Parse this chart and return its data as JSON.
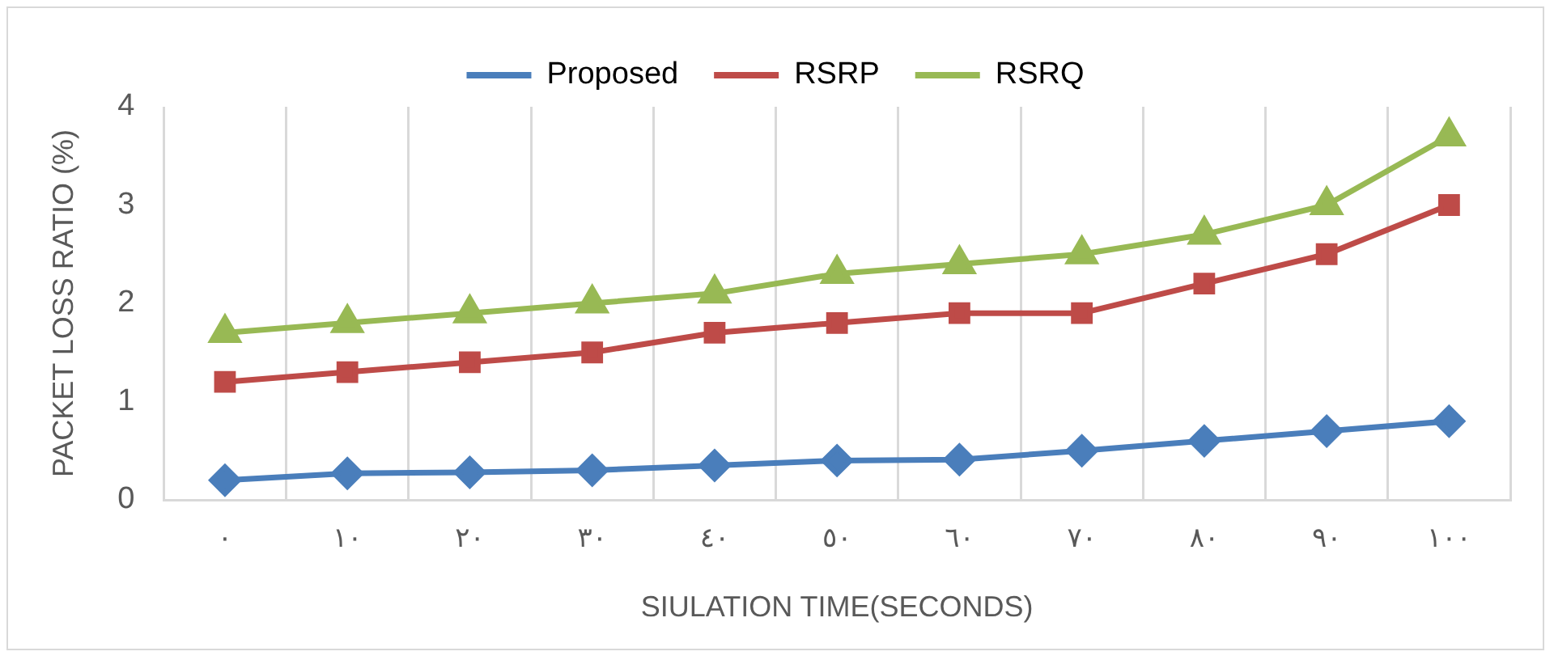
{
  "chart_data": {
    "type": "line",
    "xlabel": "SIULATION TIME(SECONDS)",
    "ylabel": "PACKET LOSS RATIO (%)",
    "categories": [
      "٠",
      "١٠",
      "٢٠",
      "٣٠",
      "٤٠",
      "٥٠",
      "٦٠",
      "٧٠",
      "٨٠",
      "٩٠",
      "١٠٠"
    ],
    "series": [
      {
        "name": "Proposed",
        "color": "#4a7ebb",
        "marker": "diamond",
        "values": [
          0.2,
          0.27,
          0.28,
          0.3,
          0.35,
          0.4,
          0.41,
          0.5,
          0.6,
          0.7,
          0.8
        ]
      },
      {
        "name": "RSRP",
        "color": "#be4b48",
        "marker": "square",
        "values": [
          1.2,
          1.3,
          1.4,
          1.5,
          1.7,
          1.8,
          1.9,
          1.9,
          2.2,
          2.5,
          3.0
        ]
      },
      {
        "name": "RSRQ",
        "color": "#98b954",
        "marker": "triangle",
        "values": [
          1.7,
          1.8,
          1.9,
          2.0,
          2.1,
          2.3,
          2.4,
          2.5,
          2.7,
          3.0,
          3.7
        ]
      }
    ],
    "ylim": [
      0,
      4
    ],
    "yticks": [
      0,
      1,
      2,
      3,
      4
    ],
    "grid": "x",
    "legend": "top",
    "line_style": "solid"
  }
}
